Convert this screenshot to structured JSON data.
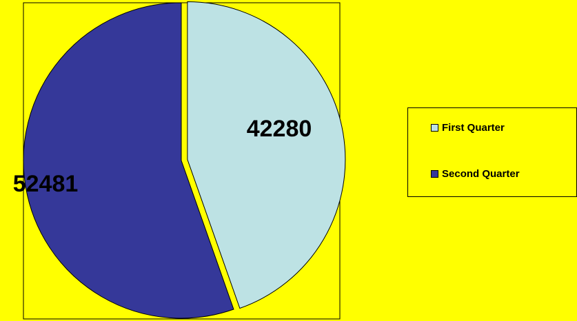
{
  "chart_data": {
    "type": "pie",
    "title": "",
    "series": [
      {
        "values": [
          42280,
          52481
        ],
        "labels": [
          "First Quarter",
          "Second Quarter"
        ]
      }
    ],
    "slices": [
      {
        "label": "First Quarter",
        "value": 42280,
        "data_label": "42280",
        "color": "#BDE2E4",
        "exploded": true
      },
      {
        "label": "Second Quarter",
        "value": 52481,
        "data_label": "52481",
        "color": "#353899",
        "exploded": false
      }
    ],
    "legend": {
      "position": "right",
      "items": [
        {
          "label": "First Quarter",
          "color": "#BDE2E4"
        },
        {
          "label": "Second Quarter",
          "color": "#353899"
        }
      ]
    },
    "start_angle": "12 o'clock, clockwise",
    "background_color": "#FFFF00",
    "plot_area_border": true
  }
}
